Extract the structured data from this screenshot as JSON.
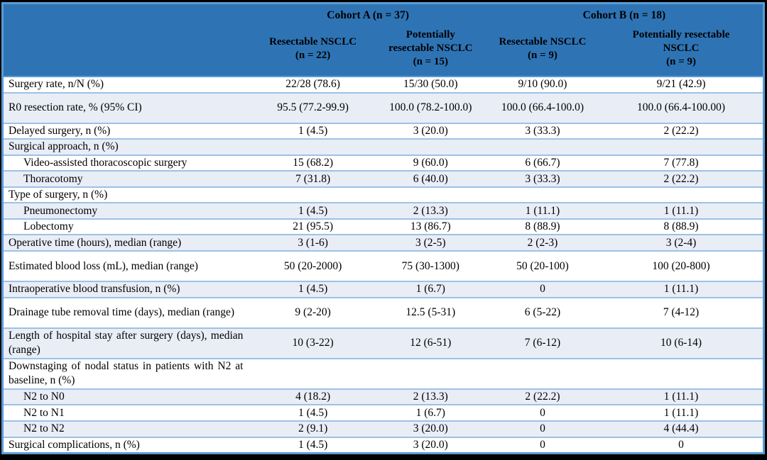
{
  "colors": {
    "header_bg": "#2E74B5",
    "outer_border": "#5B9BD5",
    "row_separator": "#9CC2E5",
    "alt_row_bg": "#E9EDF6",
    "header_text": "#FFFFFF",
    "body_text": "#000000",
    "frame": "#000000"
  },
  "table": {
    "header": {
      "cohort_a": "Cohort A (n = 37)",
      "cohort_b": "Cohort B (n = 18)",
      "sub_headers": [
        {
          "lines": [
            "Resectable NSCLC",
            "(n = 22)"
          ]
        },
        {
          "lines": [
            "Potentially",
            "resectable NSCLC",
            "(n = 15)"
          ]
        },
        {
          "lines": [
            "Resectable NSCLC",
            "(n = 9)"
          ]
        },
        {
          "lines": [
            "Potentially resectable",
            "NSCLC",
            "(n = 9)"
          ]
        }
      ]
    },
    "rows": [
      {
        "label": "Surgery rate, n/N (%)",
        "indent": false,
        "tall": false,
        "values": [
          "22/28 (78.6)",
          "15/30 (50.0)",
          "9/10 (90.0)",
          "9/21 (42.9)"
        ]
      },
      {
        "label": "R0 resection rate, % (95% CI)",
        "indent": false,
        "tall": true,
        "values": [
          "95.5 (77.2-99.9)",
          "100.0 (78.2-100.0)",
          "100.0 (66.4-100.0)",
          "100.0 (66.4-100.00)"
        ]
      },
      {
        "label": "Delayed surgery, n (%)",
        "indent": false,
        "tall": false,
        "values": [
          "1 (4.5)",
          "3 (20.0)",
          "3 (33.3)",
          "2 (22.2)"
        ]
      },
      {
        "label": "Surgical approach, n (%)",
        "indent": false,
        "tall": false,
        "values": [
          "",
          "",
          "",
          ""
        ]
      },
      {
        "label": "Video-assisted thoracoscopic surgery",
        "indent": true,
        "tall": false,
        "values": [
          "15 (68.2)",
          "9 (60.0)",
          "6 (66.7)",
          "7 (77.8)"
        ]
      },
      {
        "label": "Thoracotomy",
        "indent": true,
        "tall": false,
        "values": [
          "7 (31.8)",
          "6 (40.0)",
          "3 (33.3)",
          "2 (22.2)"
        ]
      },
      {
        "label": "Type of surgery, n (%)",
        "indent": false,
        "tall": false,
        "values": [
          "",
          "",
          "",
          ""
        ]
      },
      {
        "label": "Pneumonectomy",
        "indent": true,
        "tall": false,
        "values": [
          "1 (4.5)",
          "2 (13.3)",
          "1 (11.1)",
          "1 (11.1)"
        ]
      },
      {
        "label": "Lobectomy",
        "indent": true,
        "tall": false,
        "values": [
          "21 (95.5)",
          "13 (86.7)",
          "8 (88.9)",
          "8 (88.9)"
        ]
      },
      {
        "label": "Operative time (hours), median (range)",
        "indent": false,
        "tall": false,
        "values": [
          "3 (1-6)",
          "3 (2-5)",
          "2 (2-3)",
          "3 (2-4)"
        ]
      },
      {
        "label": "Estimated blood loss (mL), median (range)",
        "indent": false,
        "tall": true,
        "values": [
          "50 (20-2000)",
          "75 (30-1300)",
          "50 (20-100)",
          "100 (20-800)"
        ]
      },
      {
        "label": "Intraoperative blood transfusion, n (%)",
        "indent": false,
        "tall": false,
        "values": [
          "1 (4.5)",
          "1 (6.7)",
          "0",
          "1 (11.1)"
        ]
      },
      {
        "label": "Drainage tube removal time (days), median (range)",
        "indent": false,
        "tall": true,
        "values": [
          "9 (2-20)",
          "12.5 (5-31)",
          "6 (5-22)",
          "7 (4-12)"
        ]
      },
      {
        "label": "Length of hospital stay after surgery (days), median (range)",
        "indent": false,
        "tall": true,
        "values": [
          "10 (3-22)",
          "12 (6-51)",
          "7 (6-12)",
          "10 (6-14)"
        ]
      },
      {
        "label": "Downstaging of nodal status in patients with N2 at baseline, n (%)",
        "indent": false,
        "tall": true,
        "values": [
          "",
          "",
          "",
          ""
        ]
      },
      {
        "label": "N2 to N0",
        "indent": true,
        "tall": false,
        "values": [
          "4 (18.2)",
          "2 (13.3)",
          "2 (22.2)",
          "1 (11.1)"
        ]
      },
      {
        "label": "N2 to N1",
        "indent": true,
        "tall": false,
        "values": [
          "1 (4.5)",
          "1 (6.7)",
          "0",
          "1 (11.1)"
        ]
      },
      {
        "label": "N2 to N2",
        "indent": true,
        "tall": false,
        "values": [
          "2 (9.1)",
          "3 (20.0)",
          "0",
          "4 (44.4)"
        ]
      },
      {
        "label": "Surgical complications, n (%)",
        "indent": false,
        "tall": false,
        "values": [
          "1 (4.5)",
          "3 (20.0)",
          "0",
          "0"
        ]
      }
    ]
  }
}
